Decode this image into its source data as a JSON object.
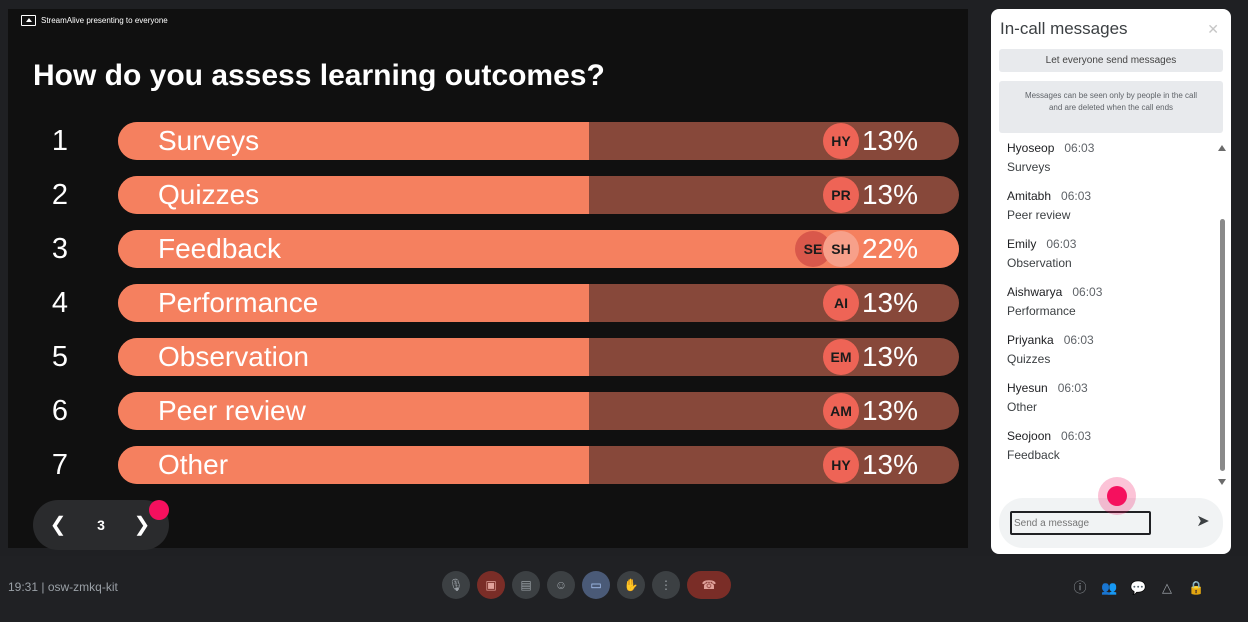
{
  "presentation": {
    "banner": "StreamAlive presenting to everyone",
    "question": "How do you assess learning outcomes?",
    "options": [
      {
        "num": "1",
        "label": "Surveys",
        "percent": "13%",
        "fill": 0.56,
        "avatars": [
          "HY"
        ]
      },
      {
        "num": "2",
        "label": "Quizzes",
        "percent": "13%",
        "fill": 0.56,
        "avatars": [
          "PR"
        ]
      },
      {
        "num": "3",
        "label": "Feedback",
        "percent": "22%",
        "fill": 1.0,
        "avatars": [
          "SE",
          "SH"
        ]
      },
      {
        "num": "4",
        "label": "Performance",
        "percent": "13%",
        "fill": 0.56,
        "avatars": [
          "AI"
        ]
      },
      {
        "num": "5",
        "label": "Observation",
        "percent": "13%",
        "fill": 0.56,
        "avatars": [
          "EM"
        ]
      },
      {
        "num": "6",
        "label": "Peer review",
        "percent": "13%",
        "fill": 0.56,
        "avatars": [
          "AM"
        ]
      },
      {
        "num": "7",
        "label": "Other",
        "percent": "13%",
        "fill": 0.56,
        "avatars": [
          "HY"
        ]
      }
    ],
    "colors": {
      "fill": "#f5805f",
      "track": "#87483a",
      "avatar": "#ee6456"
    }
  },
  "slide_nav": {
    "page": "3",
    "prev_icon": "chevron-left-icon",
    "next_icon": "chevron-right-icon"
  },
  "chat": {
    "title": "In-call messages",
    "close_label": "✕",
    "toggle_label": "Let everyone send messages",
    "note": "Messages can be seen only by people in the call and are deleted when the call ends",
    "messages": [
      {
        "name": "Hyoseop",
        "time": "06:03",
        "text": "Surveys"
      },
      {
        "name": "Amitabh",
        "time": "06:03",
        "text": "Peer review"
      },
      {
        "name": "Emily",
        "time": "06:03",
        "text": "Observation"
      },
      {
        "name": "Aishwarya",
        "time": "06:03",
        "text": "Performance"
      },
      {
        "name": "Priyanka",
        "time": "06:03",
        "text": "Quizzes"
      },
      {
        "name": "Hyesun",
        "time": "06:03",
        "text": "Other"
      },
      {
        "name": "Seojoon",
        "time": "06:03",
        "text": "Feedback"
      }
    ],
    "input_placeholder": "Send a message",
    "send_icon": "➤"
  },
  "bottom": {
    "meeting_info": "19:31  |  osw-zmkq-kit",
    "controls": [
      {
        "name": "mic-button",
        "icon": "🎙"
      },
      {
        "name": "camera-off-button",
        "icon": "▣"
      },
      {
        "name": "captions-button",
        "icon": "▤"
      },
      {
        "name": "reactions-button",
        "icon": "☺"
      },
      {
        "name": "present-button",
        "icon": "▭"
      },
      {
        "name": "raise-hand-button",
        "icon": "✋"
      },
      {
        "name": "more-options-button",
        "icon": "⋮"
      },
      {
        "name": "end-call-button",
        "icon": "☎"
      }
    ],
    "right": [
      {
        "name": "info-button",
        "icon": "ⓘ"
      },
      {
        "name": "people-button",
        "icon": "👥"
      },
      {
        "name": "chat-button",
        "icon": "💬"
      },
      {
        "name": "activities-button",
        "icon": "△"
      },
      {
        "name": "host-controls-button",
        "icon": "🔒"
      }
    ]
  }
}
